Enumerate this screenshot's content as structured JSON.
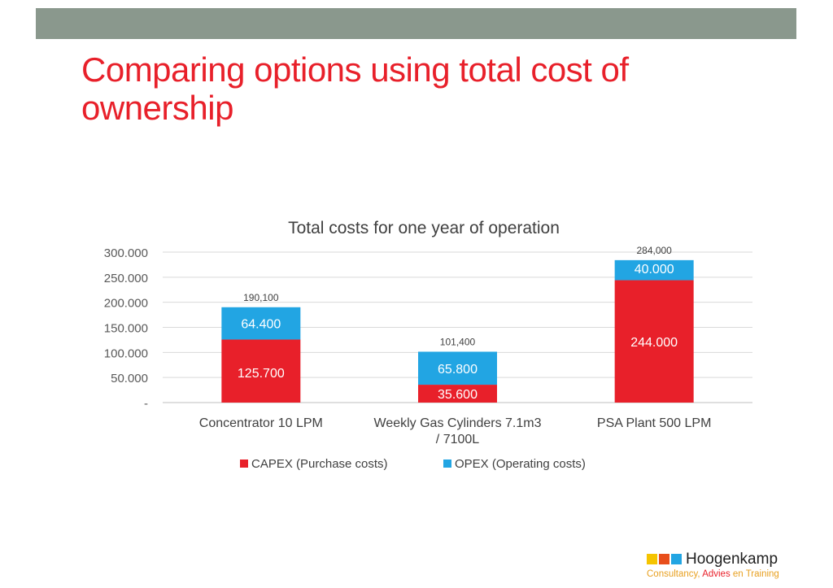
{
  "slide": {
    "title_lines": [
      "Comparing options using total cost of",
      "ownership"
    ],
    "title_color": "#e8202a",
    "banner_color": "#8a988d"
  },
  "chart_data": {
    "type": "bar",
    "stacked": true,
    "title": "Total costs for one year of operation",
    "categories": [
      [
        "Concentrator 10 LPM"
      ],
      [
        "Weekly Gas Cylinders 7.1m3",
        "/ 7100L"
      ],
      [
        "PSA Plant 500 LPM"
      ]
    ],
    "series": [
      {
        "name": "CAPEX (Purchase costs)",
        "color": "#e8202a",
        "values": [
          125700,
          35600,
          244000
        ],
        "labels": [
          "125.700",
          "35.600",
          "244.000"
        ]
      },
      {
        "name": "OPEX (Operating costs)",
        "color": "#22a5e3",
        "values": [
          64400,
          65800,
          40000
        ],
        "labels": [
          "64.400",
          "65.800",
          "40.000"
        ]
      }
    ],
    "totals": [
      "190,100",
      "101,400",
      "284,000"
    ],
    "yticks": [
      "-",
      "50.000",
      "100.000",
      "150.000",
      "200.000",
      "250.000",
      "300.000"
    ],
    "ylim": [
      0,
      300000
    ],
    "grid": true,
    "legend": "bottom"
  },
  "logo": {
    "name": "Hoogenkamp",
    "tagline_parts": [
      "Consultancy, ",
      "Advies",
      " en Training"
    ],
    "colors": [
      "#f5c400",
      "#e84e1b",
      "#22a5e3"
    ]
  }
}
